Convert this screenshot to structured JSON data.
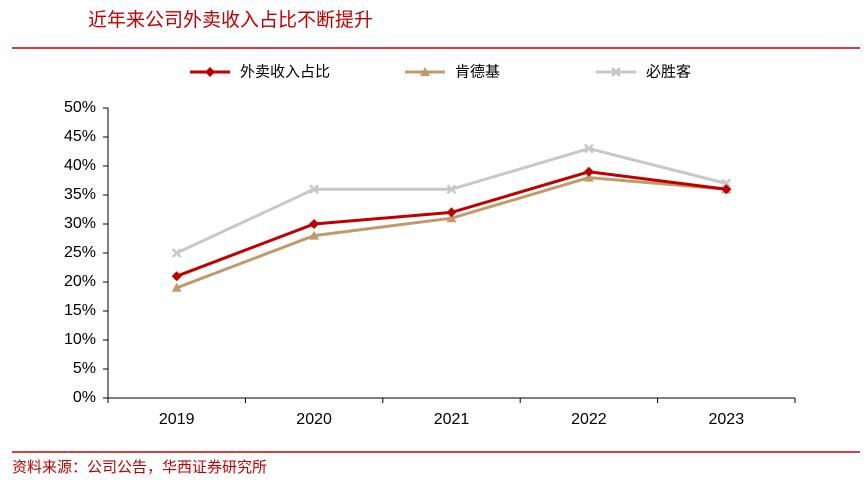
{
  "chart_data": {
    "type": "line",
    "title": "近年来公司外卖收入占比不断提升",
    "source": "资料来源：公司公告，华西证券研究所",
    "categories": [
      "2019",
      "2020",
      "2021",
      "2022",
      "2023"
    ],
    "series": [
      {
        "name": "外卖收入占比",
        "color": "#c00000",
        "marker": "diamond",
        "values": [
          21,
          30,
          32,
          39,
          36
        ]
      },
      {
        "name": "肯德基",
        "color": "#c09a6b",
        "marker": "triangle",
        "values": [
          19,
          28,
          31,
          38,
          36
        ]
      },
      {
        "name": "必胜客",
        "color": "#c8c8c8",
        "marker": "x",
        "values": [
          25,
          36,
          36,
          43,
          37
        ]
      }
    ],
    "ylim": [
      0,
      50
    ],
    "yticks": [
      {
        "value": 0,
        "label": "0%"
      },
      {
        "value": 5,
        "label": "5%"
      },
      {
        "value": 10,
        "label": "10%"
      },
      {
        "value": 15,
        "label": "15%"
      },
      {
        "value": 20,
        "label": "20%"
      },
      {
        "value": 25,
        "label": "25%"
      },
      {
        "value": 30,
        "label": "30%"
      },
      {
        "value": 35,
        "label": "35%"
      },
      {
        "value": 40,
        "label": "40%"
      },
      {
        "value": 45,
        "label": "45%"
      },
      {
        "value": 50,
        "label": "50%"
      }
    ],
    "grid": false,
    "legend": "top"
  }
}
